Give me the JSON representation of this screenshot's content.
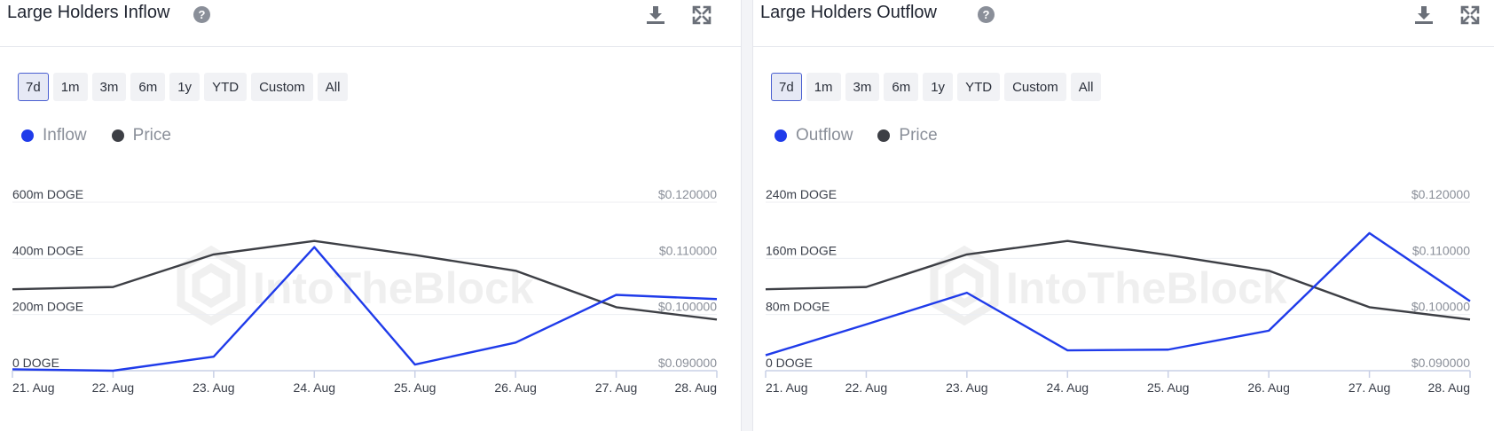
{
  "panels": [
    {
      "title": "Large Holders Inflow",
      "help_icon": "question-icon",
      "download_icon": "download-icon",
      "expand_icon": "expand-icon",
      "ranges": [
        "7d",
        "1m",
        "3m",
        "6m",
        "1y",
        "YTD",
        "Custom",
        "All"
      ],
      "active_range": "7d",
      "legend": [
        {
          "name": "Inflow",
          "color": "#1f3bea"
        },
        {
          "name": "Price",
          "color": "#3d3f45"
        }
      ],
      "watermark": "IntoTheBlock"
    },
    {
      "title": "Large Holders Outflow",
      "help_icon": "question-icon",
      "download_icon": "download-icon",
      "expand_icon": "expand-icon",
      "ranges": [
        "7d",
        "1m",
        "3m",
        "6m",
        "1y",
        "YTD",
        "Custom",
        "All"
      ],
      "active_range": "7d",
      "legend": [
        {
          "name": "Outflow",
          "color": "#1f3bea"
        },
        {
          "name": "Price",
          "color": "#3d3f45"
        }
      ],
      "watermark": "IntoTheBlock"
    }
  ],
  "chart_data": [
    {
      "type": "line",
      "categories": [
        "21. Aug",
        "22. Aug",
        "23. Aug",
        "24. Aug",
        "25. Aug",
        "26. Aug",
        "27. Aug",
        "28. Aug"
      ],
      "left_axis": {
        "ticks": [
          "0 DOGE",
          "200m DOGE",
          "400m DOGE",
          "600m DOGE"
        ],
        "ylim": [
          0,
          600
        ]
      },
      "right_axis": {
        "ticks": [
          "$0.090000",
          "$0.100000",
          "$0.110000",
          "$0.120000"
        ],
        "ylim": [
          0.09,
          0.12
        ]
      },
      "grid": true,
      "series": [
        {
          "name": "Inflow",
          "axis": "left",
          "color": "#1f3bea",
          "values": [
            5,
            0,
            50,
            440,
            22,
            100,
            270,
            255
          ]
        },
        {
          "name": "Price",
          "axis": "right",
          "color": "#3d3f45",
          "values": [
            0.1045,
            0.1049,
            0.1107,
            0.1131,
            0.1106,
            0.1078,
            0.1013,
            0.0991
          ]
        }
      ]
    },
    {
      "type": "line",
      "categories": [
        "21. Aug",
        "22. Aug",
        "23. Aug",
        "24. Aug",
        "25. Aug",
        "26. Aug",
        "27. Aug",
        "28. Aug"
      ],
      "left_axis": {
        "ticks": [
          "0 DOGE",
          "80m DOGE",
          "160m DOGE",
          "240m DOGE"
        ],
        "ylim": [
          0,
          240
        ]
      },
      "right_axis": {
        "ticks": [
          "$0.090000",
          "$0.100000",
          "$0.110000",
          "$0.120000"
        ],
        "ylim": [
          0.09,
          0.12
        ]
      },
      "grid": true,
      "series": [
        {
          "name": "Outflow",
          "axis": "left",
          "color": "#1f3bea",
          "values": [
            22,
            66,
            111,
            29,
            30,
            57,
            196,
            99
          ]
        },
        {
          "name": "Price",
          "axis": "right",
          "color": "#3d3f45",
          "values": [
            0.1045,
            0.1049,
            0.1107,
            0.1131,
            0.1106,
            0.1078,
            0.1013,
            0.0991
          ]
        }
      ]
    }
  ]
}
